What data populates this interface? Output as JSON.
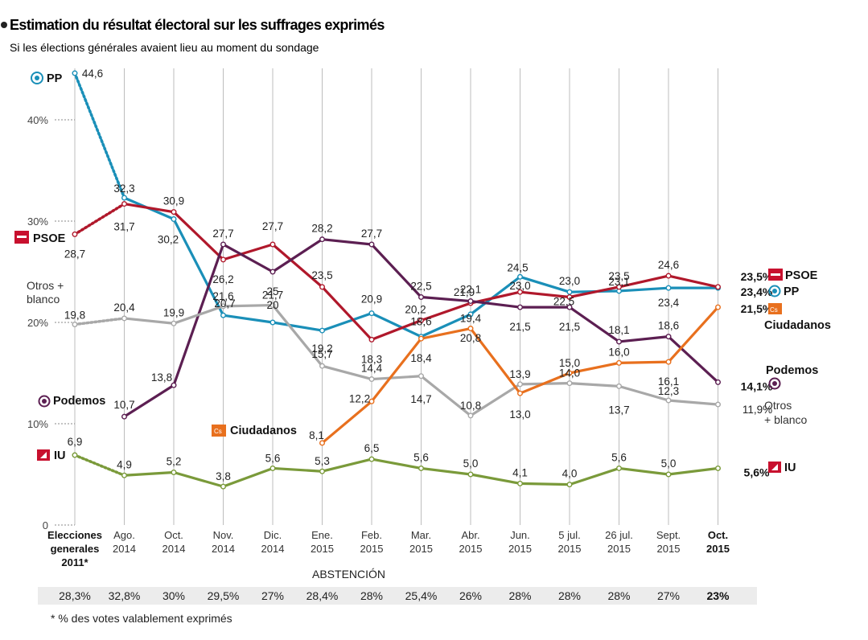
{
  "chart_data": {
    "type": "line",
    "title": "Estimation du résultat électoral sur les suffrages exprimés",
    "subtitle": "Si les élections générales avaient lieu au moment du sondage",
    "categories": [
      [
        "Elecciones",
        "generales",
        "2011*"
      ],
      [
        "Ago.",
        "2014"
      ],
      [
        "Oct.",
        "2014"
      ],
      [
        "Nov.",
        "2014"
      ],
      [
        "Dic.",
        "2014"
      ],
      [
        "Ene.",
        "2015"
      ],
      [
        "Feb.",
        "2015"
      ],
      [
        "Mar.",
        "2015"
      ],
      [
        "Abr.",
        "2015"
      ],
      [
        "Jun.",
        "2015"
      ],
      [
        "5 jul.",
        "2015"
      ],
      [
        "26 jul.",
        "2015"
      ],
      [
        "Sept.",
        "2015"
      ],
      [
        "Oct.",
        "2015"
      ]
    ],
    "ylim": [
      0,
      45
    ],
    "yticks": [
      {
        "value": 0,
        "label": "0"
      },
      {
        "value": 10,
        "label": "10%"
      },
      {
        "value": 20,
        "label": "20%"
      },
      {
        "value": 30,
        "label": "30%"
      },
      {
        "value": 40,
        "label": "40%"
      }
    ],
    "series": [
      {
        "name": "PP",
        "color": "#1a8fb8",
        "icon": "pp-logo-icon",
        "values": [
          44.6,
          32.3,
          30.2,
          20.7,
          20,
          19.2,
          20.9,
          18.6,
          20.8,
          24.5,
          23.0,
          23.1,
          23.4,
          23.4
        ],
        "labels": [
          "44,6",
          "32,3",
          "30,2",
          "20,7",
          "20",
          "19,2",
          "20,9",
          "18,6",
          "20,8",
          "24,5",
          "23,0",
          "23,1",
          "23,4",
          "23,4%"
        ]
      },
      {
        "name": "PSOE",
        "color": "#b0182b",
        "icon": "psoe-logo-icon",
        "values": [
          28.7,
          31.7,
          30.9,
          26.2,
          27.7,
          23.5,
          18.3,
          20.2,
          21.9,
          23.0,
          22.5,
          23.5,
          24.6,
          23.5
        ],
        "labels": [
          "28,7",
          "31,7",
          "30,9",
          "26,2",
          "27,7",
          "23,5",
          "18,3",
          "20,2",
          "21,9",
          "23,0",
          "22,5",
          "23,5",
          "24,6",
          "23,5%"
        ]
      },
      {
        "name": "Podemos",
        "color": "#5c1f52",
        "icon": "podemos-logo-icon",
        "values": [
          null,
          10.7,
          13.8,
          27.7,
          25,
          28.2,
          27.7,
          22.5,
          22.1,
          21.5,
          21.5,
          18.1,
          18.6,
          14.1
        ],
        "labels": [
          "",
          "10,7",
          "13,8",
          "27,7",
          "25",
          "28,2",
          "27,7",
          "22,5",
          "22,1",
          "21,5",
          "21,5",
          "18,1",
          "18,6",
          "14,1%"
        ]
      },
      {
        "name": "Otros + blanco",
        "color": "#a8a8a8",
        "icon": "",
        "values": [
          19.8,
          20.4,
          19.9,
          21.6,
          21.7,
          15.7,
          14.4,
          14.7,
          10.8,
          13.9,
          14.0,
          13.7,
          12.3,
          11.9
        ],
        "labels": [
          "19,8",
          "20,4",
          "19,9",
          "21,6",
          "21,7",
          "15,7",
          "14,4",
          "14,7",
          "10,8",
          "13,9",
          "14,0",
          "13,7",
          "12,3",
          "11,9%"
        ]
      },
      {
        "name": "Ciudadanos",
        "color": "#e8701e",
        "icon": "ciudadanos-logo-icon",
        "values": [
          null,
          null,
          null,
          null,
          null,
          8.1,
          12.2,
          18.4,
          19.4,
          13.0,
          15.0,
          16.0,
          16.1,
          21.5
        ],
        "labels": [
          "",
          "",
          "",
          "",
          "",
          "8,1",
          "12,2",
          "18,4",
          "19,4",
          "13,0",
          "15,0",
          "16,0",
          "16,1",
          "21,5%"
        ]
      },
      {
        "name": "IU",
        "color": "#7a9a3a",
        "icon": "iu-logo-icon",
        "values": [
          6.9,
          4.9,
          5.2,
          3.8,
          5.6,
          5.3,
          6.5,
          5.6,
          5.0,
          4.1,
          4.0,
          5.6,
          5.0,
          5.6
        ],
        "labels": [
          "6,9",
          "4,9",
          "5,2",
          "3,8",
          "5,6",
          "5,3",
          "6,5",
          "5,6",
          "5,0",
          "4,1",
          "4,0",
          "5,6",
          "5,0",
          "5,6%"
        ]
      }
    ],
    "legend_labels": {
      "pp_left": "PP",
      "psoe_left": "PSOE",
      "otros_left": [
        "Otros +",
        "blanco"
      ],
      "podemos_left": "Podemos",
      "ciudadanos_left": "Ciudadanos",
      "iu_left": "IU",
      "psoe_right": "PSOE",
      "pp_right": "PP",
      "ciudadanos_right": "Ciudadanos",
      "podemos_right": "Podemos",
      "otros_right": [
        "Otros",
        "+ blanco"
      ],
      "iu_right": "IU"
    },
    "abstention": {
      "title": "ABSTENCIÓN",
      "values": [
        "28,3%",
        "32,8%",
        "30%",
        "29,5%",
        "27%",
        "28,4%",
        "28%",
        "25,4%",
        "26%",
        "28%",
        "28%",
        "28%",
        "27%",
        "23%"
      ]
    },
    "footnote": "* % des votes valablement exprimés"
  }
}
